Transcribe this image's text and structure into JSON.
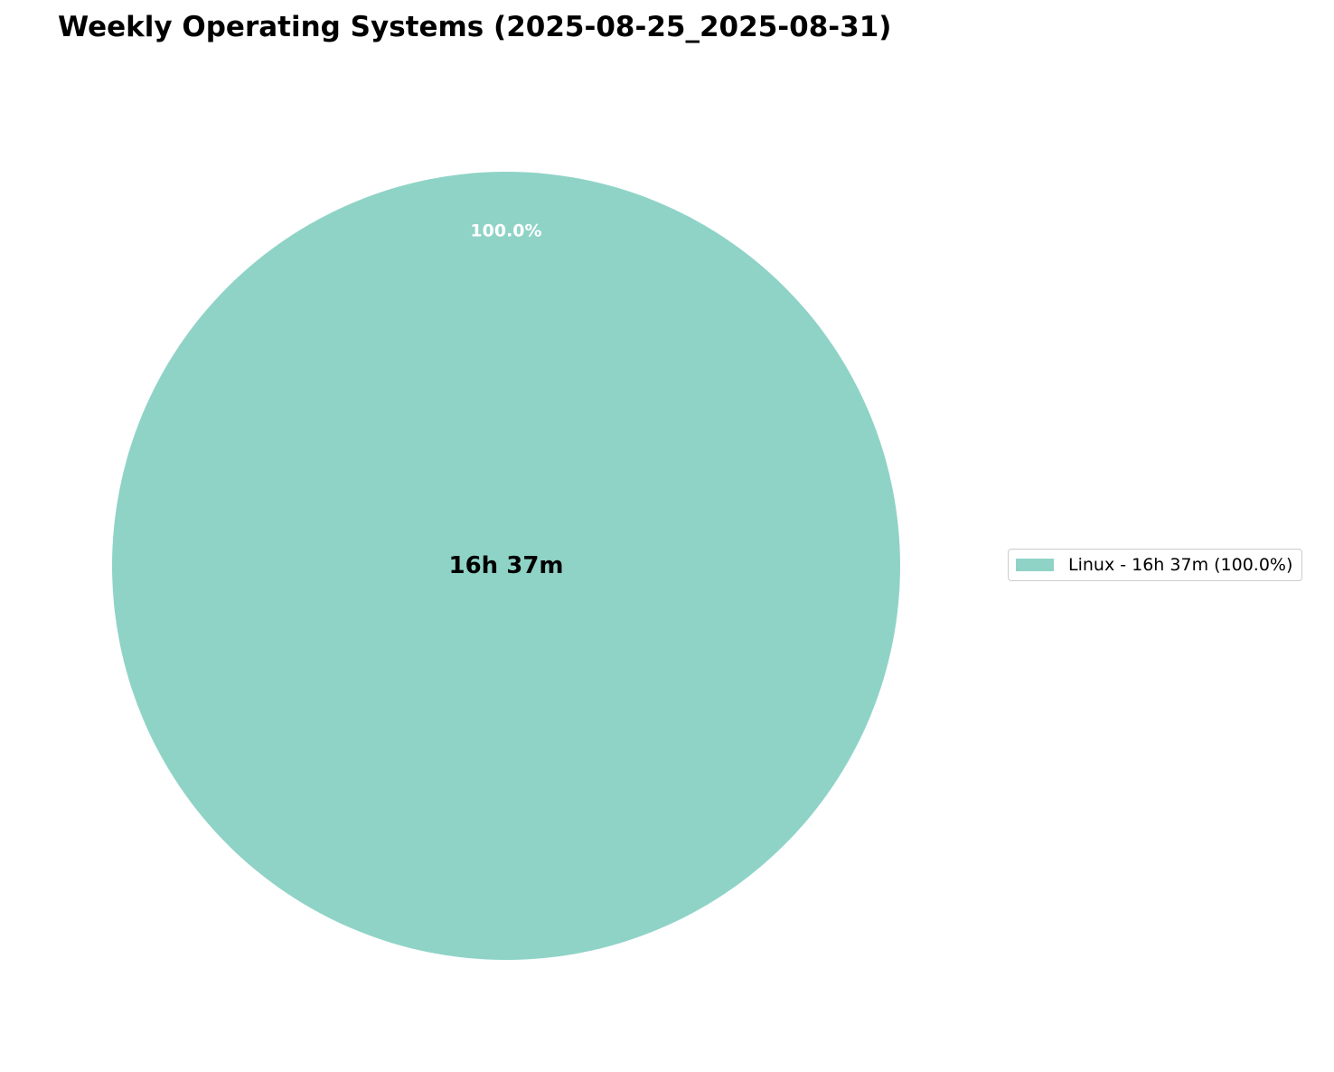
{
  "chart_data": {
    "type": "pie",
    "title": "Weekly Operating Systems (2025-08-25_2025-08-31)",
    "center_label": "16h 37m",
    "slices": [
      {
        "label": "Linux",
        "duration": "16h 37m",
        "percent": 100.0,
        "percent_label": "100.0%",
        "color": "#8fd3c7"
      }
    ],
    "legend": {
      "placement": "right",
      "entries": [
        "Linux - 16h 37m (100.0%)"
      ]
    }
  }
}
